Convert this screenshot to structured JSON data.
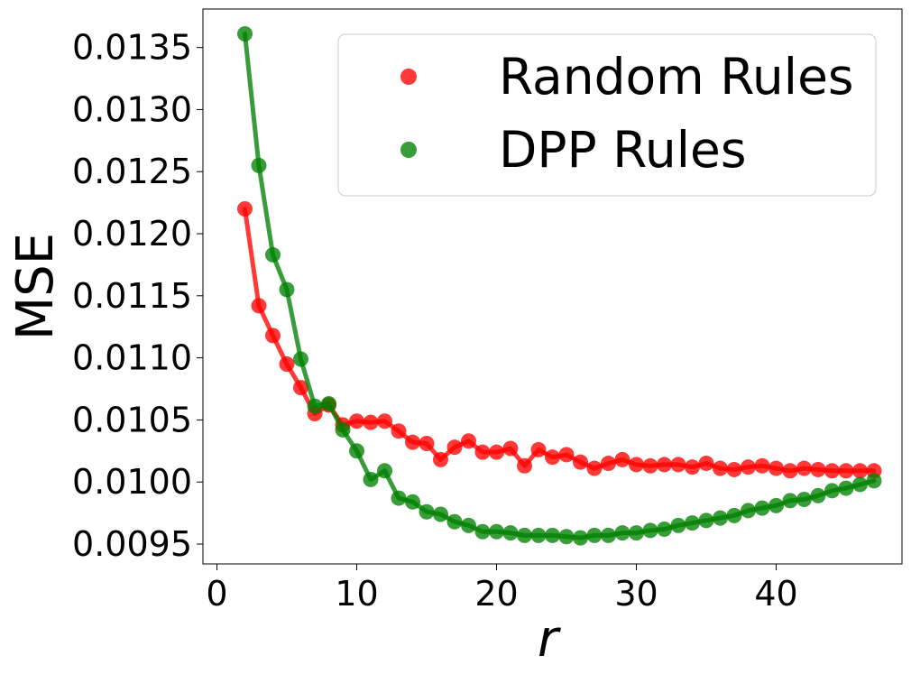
{
  "chart_data": {
    "type": "line",
    "xlabel": "r",
    "ylabel": "MSE",
    "xlim": [
      -1.0,
      49.0
    ],
    "ylim": [
      0.00934,
      0.01381
    ],
    "x_ticks": [
      0,
      10,
      20,
      30,
      40
    ],
    "x_tick_labels": [
      "0",
      "10",
      "20",
      "30",
      "40"
    ],
    "y_ticks": [
      0.0095,
      0.01,
      0.0105,
      0.011,
      0.0115,
      0.012,
      0.0125,
      0.013,
      0.0135
    ],
    "y_tick_labels": [
      "0.0095",
      "0.0100",
      "0.0105",
      "0.0110",
      "0.0115",
      "0.0120",
      "0.0125",
      "0.0130",
      "0.0135"
    ],
    "grid": false,
    "legend_position": "top-right",
    "series": [
      {
        "name": "Random Rules",
        "color": "#ff0000",
        "x": [
          2,
          3,
          4,
          5,
          6,
          7,
          8,
          9,
          10,
          11,
          12,
          13,
          14,
          15,
          16,
          17,
          18,
          19,
          20,
          21,
          22,
          23,
          24,
          25,
          26,
          27,
          28,
          29,
          30,
          31,
          32,
          33,
          34,
          35,
          36,
          37,
          38,
          39,
          40,
          41,
          42,
          43,
          44,
          45,
          46,
          47
        ],
        "values": [
          0.0122,
          0.01142,
          0.01118,
          0.01095,
          0.01076,
          0.01055,
          0.01062,
          0.01046,
          0.01049,
          0.01048,
          0.01049,
          0.01041,
          0.01032,
          0.01031,
          0.01018,
          0.01028,
          0.01033,
          0.01024,
          0.01024,
          0.01027,
          0.01013,
          0.01026,
          0.0102,
          0.01022,
          0.01016,
          0.01011,
          0.01015,
          0.01018,
          0.01014,
          0.01013,
          0.01014,
          0.01014,
          0.01012,
          0.01015,
          0.01011,
          0.0101,
          0.01012,
          0.01013,
          0.01011,
          0.01009,
          0.01011,
          0.0101,
          0.01009,
          0.01009,
          0.01009,
          0.01009
        ]
      },
      {
        "name": "DPP Rules",
        "color": "#008000",
        "x": [
          2,
          3,
          4,
          5,
          6,
          7,
          8,
          9,
          10,
          11,
          12,
          13,
          14,
          15,
          16,
          17,
          18,
          19,
          20,
          21,
          22,
          23,
          24,
          25,
          26,
          27,
          28,
          29,
          30,
          31,
          32,
          33,
          34,
          35,
          36,
          37,
          38,
          39,
          40,
          41,
          42,
          43,
          44,
          45,
          46,
          47
        ],
        "values": [
          0.01361,
          0.01255,
          0.01183,
          0.01155,
          0.01099,
          0.01061,
          0.01063,
          0.01042,
          0.01025,
          0.01002,
          0.01009,
          0.00987,
          0.00984,
          0.00976,
          0.00974,
          0.00968,
          0.00965,
          0.0096,
          0.0096,
          0.00959,
          0.00957,
          0.00957,
          0.00957,
          0.00956,
          0.00955,
          0.00957,
          0.00957,
          0.00959,
          0.00959,
          0.00961,
          0.00962,
          0.00965,
          0.00967,
          0.00969,
          0.00971,
          0.00973,
          0.00977,
          0.00979,
          0.00981,
          0.00985,
          0.00986,
          0.00989,
          0.00993,
          0.00995,
          0.00998,
          0.01001
        ]
      }
    ]
  }
}
